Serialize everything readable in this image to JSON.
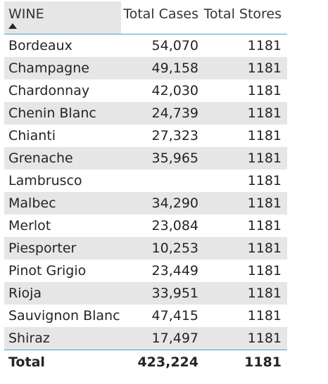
{
  "table": {
    "columns": {
      "wine": "WINE",
      "total_cases": "Total Cases",
      "total_stores": "Total Stores"
    },
    "sort": {
      "column": "WINE",
      "direction": "ascending",
      "icon": "sort-ascending-icon"
    },
    "rows": [
      {
        "wine": "Bordeaux",
        "cases": "54,070",
        "stores": "1181"
      },
      {
        "wine": "Champagne",
        "cases": "49,158",
        "stores": "1181"
      },
      {
        "wine": "Chardonnay",
        "cases": "42,030",
        "stores": "1181"
      },
      {
        "wine": "Chenin Blanc",
        "cases": "24,739",
        "stores": "1181"
      },
      {
        "wine": "Chianti",
        "cases": "27,323",
        "stores": "1181"
      },
      {
        "wine": "Grenache",
        "cases": "35,965",
        "stores": "1181"
      },
      {
        "wine": "Lambrusco",
        "cases": "",
        "stores": "1181"
      },
      {
        "wine": "Malbec",
        "cases": "34,290",
        "stores": "1181"
      },
      {
        "wine": "Merlot",
        "cases": "23,084",
        "stores": "1181"
      },
      {
        "wine": "Piesporter",
        "cases": "10,253",
        "stores": "1181"
      },
      {
        "wine": "Pinot Grigio",
        "cases": "23,449",
        "stores": "1181"
      },
      {
        "wine": "Rioja",
        "cases": "33,951",
        "stores": "1181"
      },
      {
        "wine": "Sauvignon Blanc",
        "cases": "47,415",
        "stores": "1181"
      },
      {
        "wine": "Shiraz",
        "cases": "17,497",
        "stores": "1181"
      }
    ],
    "total": {
      "label": "Total",
      "cases": "423,224",
      "stores": "1181"
    }
  },
  "colors": {
    "accent_line": "#4aa0d8",
    "banded_row": "#e6e6e6",
    "text": "#252423"
  }
}
